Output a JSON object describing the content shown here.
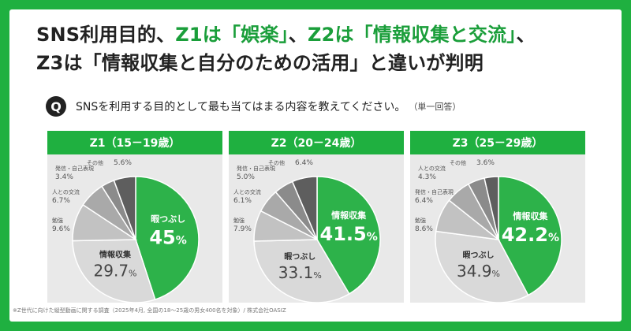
{
  "headline": {
    "p1": "SNS利用目的、",
    "g1": "Z1は「娯楽」",
    "p2": "、",
    "g2": "Z2は「情報収集と交流」",
    "p3": "、",
    "l2": "Z3は「情報収集と自分のための活用」と違いが判明"
  },
  "question": {
    "icon_text": "Q",
    "text": "SNSを利用する目的として最も当てはまる内容を教えてください。",
    "note": "（単一回答）"
  },
  "colors": {
    "brand_green": "#1fb040",
    "slice_big": "#2db24a",
    "slice_second": "#d9d9d9",
    "slice_third": "#c2c2c2",
    "slice_fourth": "#a9a9a9",
    "slice_fifth": "#8b8b8b",
    "slice_sixth": "#5e5e5e"
  },
  "chart_data": [
    {
      "type": "pie",
      "title": "Z1（15－19歳）",
      "slices": [
        {
          "label": "暇つぶし",
          "value": 45.0,
          "display": "45",
          "unit": "%"
        },
        {
          "label": "情報収集",
          "value": 29.7,
          "display": "29.7",
          "unit": "%"
        },
        {
          "label": "勉強",
          "value": 9.6,
          "display": "9.6%"
        },
        {
          "label": "人との交流",
          "value": 6.7,
          "display": "6.7%"
        },
        {
          "label": "発信・自己表現",
          "value": 3.4,
          "display": "3.4%"
        },
        {
          "label": "その他",
          "value": 5.6,
          "display": "5.6%"
        }
      ]
    },
    {
      "type": "pie",
      "title": "Z2（20－24歳）",
      "slices": [
        {
          "label": "情報収集",
          "value": 41.5,
          "display": "41.5",
          "unit": "%"
        },
        {
          "label": "暇つぶし",
          "value": 33.1,
          "display": "33.1",
          "unit": "%"
        },
        {
          "label": "勉強",
          "value": 7.9,
          "display": "7.9%"
        },
        {
          "label": "人との交流",
          "value": 6.1,
          "display": "6.1%"
        },
        {
          "label": "発信・自己表現",
          "value": 5.0,
          "display": "5.0%"
        },
        {
          "label": "その他",
          "value": 6.4,
          "display": "6.4%"
        }
      ]
    },
    {
      "type": "pie",
      "title": "Z3（25－29歳）",
      "slices": [
        {
          "label": "情報収集",
          "value": 42.2,
          "display": "42.2",
          "unit": "%"
        },
        {
          "label": "暇つぶし",
          "value": 34.9,
          "display": "34.9",
          "unit": "%"
        },
        {
          "label": "勉強",
          "value": 8.6,
          "display": "8.6%"
        },
        {
          "label": "発信・自己表現",
          "value": 6.4,
          "display": "6.4%"
        },
        {
          "label": "人との交流",
          "value": 4.3,
          "display": "4.3%"
        },
        {
          "label": "その他",
          "value": 3.6,
          "display": "3.6%"
        }
      ]
    }
  ],
  "source": "※Z世代に向けた縦型動画に関する調査（2025年4月, 全国の18～25歳の男女400名を対象）/ 株式会社OASIZ"
}
